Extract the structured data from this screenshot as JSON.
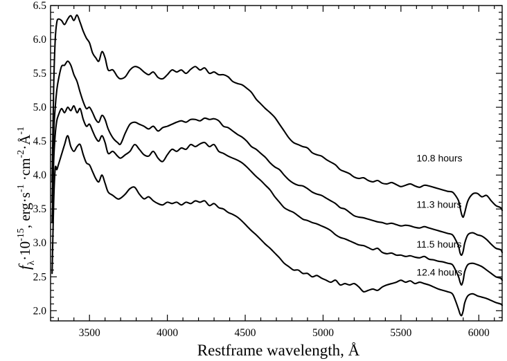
{
  "chart_data": {
    "type": "line",
    "xlabel": "Restframe wavelength, Å",
    "ylabel": {
      "f": "f",
      "lambda": "λ",
      "dot1": "·10",
      "exp1": "-15",
      "mid": ", erg·s",
      "exp2": "-1",
      "mid2": " ·cm",
      "exp3": "-2",
      "dot3": "·",
      "aring": "Å",
      "exp4": "-1"
    },
    "xlim": [
      3250,
      6150
    ],
    "ylim": [
      1.85,
      6.5
    ],
    "xticks": [
      3500,
      4000,
      4500,
      5000,
      5500,
      6000
    ],
    "xtick_labels": [
      "3500",
      "4000",
      "4500",
      "5000",
      "5500",
      "6000"
    ],
    "yticks": [
      2.0,
      2.5,
      3.0,
      3.5,
      4.0,
      4.5,
      5.0,
      5.5,
      6.0,
      6.5
    ],
    "ytick_labels": [
      "2.0",
      "2.5",
      "3.0",
      "3.5",
      "4.0",
      "4.5",
      "5.0",
      "5.5",
      "6.0",
      "6.5"
    ],
    "series": [
      {
        "name": "10.8 hours",
        "label_pos": [
          5600,
          4.25
        ],
        "x": [
          3260,
          3270,
          3280,
          3290,
          3300,
          3320,
          3340,
          3360,
          3380,
          3400,
          3420,
          3440,
          3460,
          3480,
          3500,
          3520,
          3540,
          3560,
          3580,
          3600,
          3620,
          3650,
          3680,
          3700,
          3730,
          3760,
          3790,
          3820,
          3850,
          3880,
          3910,
          3940,
          3970,
          4000,
          4030,
          4060,
          4090,
          4120,
          4150,
          4180,
          4210,
          4240,
          4270,
          4300,
          4330,
          4360,
          4390,
          4420,
          4450,
          4480,
          4510,
          4540,
          4570,
          4600,
          4630,
          4660,
          4690,
          4720,
          4750,
          4780,
          4810,
          4840,
          4870,
          4900,
          4930,
          4960,
          4990,
          5020,
          5050,
          5080,
          5110,
          5140,
          5170,
          5200,
          5230,
          5260,
          5290,
          5320,
          5350,
          5380,
          5410,
          5440,
          5470,
          5500,
          5530,
          5560,
          5590,
          5620,
          5650,
          5680,
          5710,
          5740,
          5770,
          5800,
          5830,
          5850,
          5870,
          5880,
          5890,
          5900,
          5910,
          5930,
          5960,
          5990,
          6020,
          6050,
          6080,
          6110,
          6140,
          6150
        ],
        "y": [
          3.9,
          5.3,
          6.0,
          6.25,
          6.3,
          6.28,
          6.22,
          6.3,
          6.35,
          6.28,
          6.36,
          6.25,
          6.12,
          6.02,
          5.95,
          5.8,
          5.73,
          5.68,
          5.82,
          5.73,
          5.55,
          5.55,
          5.45,
          5.42,
          5.45,
          5.55,
          5.6,
          5.58,
          5.52,
          5.48,
          5.52,
          5.44,
          5.42,
          5.48,
          5.55,
          5.52,
          5.55,
          5.5,
          5.56,
          5.6,
          5.55,
          5.58,
          5.5,
          5.52,
          5.48,
          5.48,
          5.45,
          5.38,
          5.35,
          5.33,
          5.28,
          5.22,
          5.12,
          5.05,
          4.98,
          4.92,
          4.85,
          4.75,
          4.65,
          4.55,
          4.48,
          4.45,
          4.42,
          4.4,
          4.33,
          4.3,
          4.28,
          4.23,
          4.19,
          4.15,
          4.08,
          4.05,
          4.02,
          3.97,
          3.95,
          3.96,
          3.92,
          3.9,
          3.92,
          3.88,
          3.87,
          3.89,
          3.86,
          3.83,
          3.85,
          3.87,
          3.84,
          3.82,
          3.85,
          3.84,
          3.82,
          3.8,
          3.78,
          3.76,
          3.75,
          3.7,
          3.62,
          3.52,
          3.42,
          3.38,
          3.45,
          3.62,
          3.72,
          3.73,
          3.68,
          3.7,
          3.62,
          3.55,
          3.52,
          3.48
        ]
      },
      {
        "name": "11.3 hours",
        "label_pos": [
          5600,
          3.57
        ],
        "x": [
          3260,
          3270,
          3280,
          3290,
          3300,
          3320,
          3340,
          3360,
          3380,
          3400,
          3420,
          3440,
          3460,
          3480,
          3500,
          3520,
          3540,
          3560,
          3580,
          3600,
          3620,
          3650,
          3680,
          3700,
          3730,
          3760,
          3790,
          3820,
          3850,
          3880,
          3910,
          3940,
          3970,
          4000,
          4030,
          4060,
          4090,
          4120,
          4150,
          4180,
          4210,
          4240,
          4270,
          4300,
          4330,
          4360,
          4390,
          4420,
          4450,
          4480,
          4510,
          4540,
          4570,
          4600,
          4630,
          4660,
          4690,
          4720,
          4750,
          4780,
          4810,
          4840,
          4870,
          4900,
          4930,
          4960,
          4990,
          5020,
          5050,
          5080,
          5110,
          5140,
          5170,
          5200,
          5230,
          5260,
          5290,
          5320,
          5350,
          5380,
          5410,
          5440,
          5470,
          5500,
          5530,
          5560,
          5590,
          5620,
          5650,
          5680,
          5710,
          5740,
          5770,
          5800,
          5830,
          5850,
          5870,
          5880,
          5890,
          5900,
          5910,
          5930,
          5960,
          5990,
          6020,
          6050,
          6080,
          6110,
          6140,
          6150
        ],
        "y": [
          3.6,
          4.6,
          5.0,
          5.25,
          5.4,
          5.6,
          5.62,
          5.68,
          5.62,
          5.48,
          5.38,
          5.22,
          5.08,
          4.98,
          5.0,
          4.92,
          4.82,
          4.78,
          4.88,
          4.82,
          4.68,
          4.55,
          4.48,
          4.46,
          4.62,
          4.75,
          4.78,
          4.75,
          4.72,
          4.68,
          4.72,
          4.65,
          4.7,
          4.72,
          4.75,
          4.78,
          4.8,
          4.78,
          4.82,
          4.82,
          4.8,
          4.84,
          4.82,
          4.83,
          4.8,
          4.72,
          4.7,
          4.65,
          4.6,
          4.56,
          4.5,
          4.42,
          4.38,
          4.32,
          4.26,
          4.18,
          4.12,
          4.08,
          4.0,
          3.93,
          3.88,
          3.85,
          3.84,
          3.8,
          3.75,
          3.72,
          3.7,
          3.66,
          3.62,
          3.58,
          3.52,
          3.5,
          3.45,
          3.4,
          3.38,
          3.37,
          3.35,
          3.33,
          3.31,
          3.3,
          3.28,
          3.29,
          3.27,
          3.25,
          3.26,
          3.25,
          3.23,
          3.22,
          3.24,
          3.22,
          3.2,
          3.18,
          3.16,
          3.14,
          3.12,
          3.05,
          2.95,
          2.85,
          2.82,
          2.88,
          3.0,
          3.12,
          3.15,
          3.12,
          3.1,
          3.05,
          2.98,
          2.92,
          2.9,
          2.86
        ]
      },
      {
        "name": "11.5 hours",
        "label_pos": [
          5600,
          2.98
        ],
        "x": [
          3260,
          3270,
          3280,
          3290,
          3300,
          3320,
          3340,
          3360,
          3380,
          3400,
          3420,
          3440,
          3460,
          3480,
          3500,
          3520,
          3540,
          3560,
          3580,
          3600,
          3620,
          3650,
          3680,
          3700,
          3730,
          3760,
          3790,
          3820,
          3850,
          3880,
          3910,
          3940,
          3970,
          4000,
          4030,
          4060,
          4090,
          4120,
          4150,
          4180,
          4210,
          4240,
          4270,
          4300,
          4330,
          4360,
          4390,
          4420,
          4450,
          4480,
          4510,
          4540,
          4570,
          4600,
          4630,
          4660,
          4690,
          4720,
          4750,
          4780,
          4810,
          4840,
          4870,
          4900,
          4930,
          4960,
          4990,
          5020,
          5050,
          5080,
          5110,
          5140,
          5170,
          5200,
          5230,
          5260,
          5290,
          5320,
          5350,
          5380,
          5410,
          5440,
          5470,
          5500,
          5530,
          5560,
          5590,
          5620,
          5650,
          5680,
          5710,
          5740,
          5770,
          5800,
          5830,
          5850,
          5870,
          5880,
          5890,
          5900,
          5910,
          5930,
          5960,
          5990,
          6020,
          6050,
          6080,
          6110,
          6140,
          6150
        ],
        "y": [
          3.3,
          4.2,
          4.6,
          4.8,
          4.88,
          4.98,
          4.92,
          5.0,
          4.95,
          5.02,
          4.92,
          4.98,
          4.82,
          4.72,
          4.75,
          4.65,
          4.55,
          4.5,
          4.58,
          4.48,
          4.32,
          4.35,
          4.28,
          4.25,
          4.3,
          4.35,
          4.45,
          4.38,
          4.3,
          4.28,
          4.35,
          4.25,
          4.2,
          4.3,
          4.38,
          4.35,
          4.4,
          4.38,
          4.45,
          4.42,
          4.46,
          4.48,
          4.42,
          4.45,
          4.35,
          4.32,
          4.28,
          4.25,
          4.22,
          4.18,
          4.12,
          4.05,
          3.98,
          3.92,
          3.85,
          3.78,
          3.68,
          3.6,
          3.52,
          3.48,
          3.45,
          3.4,
          3.35,
          3.33,
          3.3,
          3.28,
          3.25,
          3.22,
          3.18,
          3.12,
          3.08,
          3.06,
          3.03,
          3.0,
          2.97,
          2.96,
          2.93,
          2.9,
          2.92,
          2.86,
          2.84,
          2.85,
          2.82,
          2.82,
          2.8,
          2.81,
          2.79,
          2.78,
          2.8,
          2.76,
          2.75,
          2.73,
          2.72,
          2.7,
          2.68,
          2.6,
          2.5,
          2.42,
          2.38,
          2.45,
          2.58,
          2.68,
          2.7,
          2.68,
          2.65,
          2.6,
          2.55,
          2.5,
          2.48,
          2.45
        ]
      },
      {
        "name": "12.4 hours",
        "label_pos": [
          5600,
          2.57
        ],
        "x": [
          3260,
          3270,
          3280,
          3290,
          3300,
          3320,
          3340,
          3360,
          3380,
          3400,
          3420,
          3440,
          3460,
          3480,
          3500,
          3520,
          3540,
          3560,
          3580,
          3600,
          3620,
          3650,
          3680,
          3700,
          3730,
          3760,
          3790,
          3820,
          3850,
          3880,
          3910,
          3940,
          3970,
          4000,
          4030,
          4060,
          4090,
          4120,
          4150,
          4180,
          4210,
          4240,
          4270,
          4300,
          4330,
          4360,
          4390,
          4420,
          4450,
          4480,
          4510,
          4540,
          4570,
          4600,
          4630,
          4660,
          4690,
          4720,
          4750,
          4780,
          4810,
          4840,
          4870,
          4900,
          4930,
          4960,
          4990,
          5020,
          5050,
          5080,
          5110,
          5140,
          5170,
          5200,
          5230,
          5260,
          5290,
          5320,
          5350,
          5380,
          5410,
          5440,
          5470,
          5500,
          5530,
          5560,
          5590,
          5620,
          5650,
          5680,
          5710,
          5740,
          5770,
          5800,
          5830,
          5850,
          5870,
          5880,
          5890,
          5900,
          5910,
          5930,
          5960,
          5990,
          6020,
          6050,
          6080,
          6110,
          6140,
          6150
        ],
        "y": [
          2.55,
          3.6,
          4.1,
          4.08,
          4.15,
          4.3,
          4.45,
          4.58,
          4.42,
          4.35,
          4.42,
          4.45,
          4.3,
          4.18,
          4.15,
          4.05,
          3.95,
          3.9,
          4.0,
          3.88,
          3.75,
          3.7,
          3.65,
          3.66,
          3.72,
          3.8,
          3.82,
          3.72,
          3.65,
          3.68,
          3.62,
          3.58,
          3.56,
          3.6,
          3.58,
          3.6,
          3.56,
          3.6,
          3.58,
          3.62,
          3.6,
          3.62,
          3.55,
          3.58,
          3.52,
          3.5,
          3.45,
          3.42,
          3.38,
          3.32,
          3.25,
          3.18,
          3.12,
          3.05,
          2.98,
          2.92,
          2.85,
          2.78,
          2.7,
          2.65,
          2.6,
          2.6,
          2.55,
          2.55,
          2.5,
          2.52,
          2.48,
          2.45,
          2.42,
          2.45,
          2.38,
          2.4,
          2.38,
          2.4,
          2.35,
          2.28,
          2.3,
          2.32,
          2.3,
          2.35,
          2.38,
          2.4,
          2.42,
          2.45,
          2.42,
          2.44,
          2.4,
          2.42,
          2.4,
          2.38,
          2.35,
          2.32,
          2.3,
          2.28,
          2.25,
          2.15,
          2.02,
          1.95,
          1.93,
          2.0,
          2.12,
          2.22,
          2.25,
          2.22,
          2.2,
          2.18,
          2.15,
          2.12,
          2.1,
          2.08
        ]
      }
    ]
  }
}
